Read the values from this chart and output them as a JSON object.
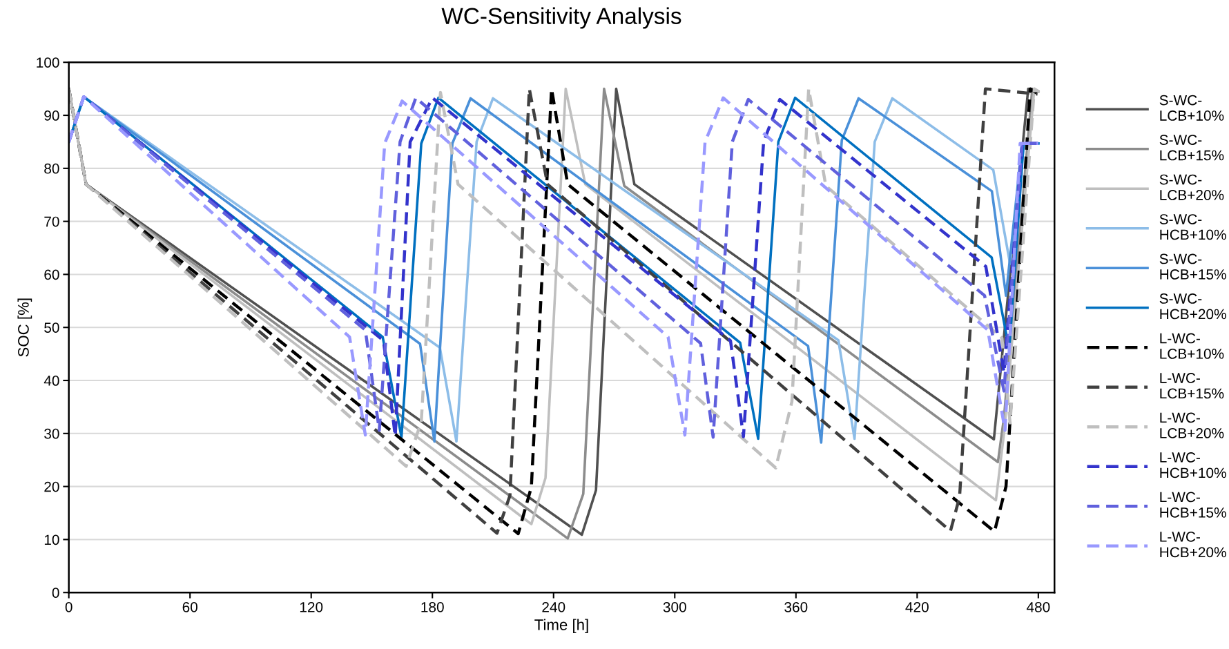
{
  "chart_data": {
    "type": "line",
    "title": "WC-Sensitivity Analysis",
    "xlabel": "Time [h]",
    "ylabel": "SOC [%]",
    "xlim": [
      0,
      488
    ],
    "ylim": [
      0,
      100
    ],
    "xticks": [
      0,
      60,
      120,
      180,
      240,
      300,
      360,
      420,
      480
    ],
    "yticks": [
      0,
      10,
      20,
      30,
      40,
      50,
      60,
      70,
      80,
      90,
      100
    ],
    "grid": "y",
    "legend": "right",
    "marker": "none",
    "series": [
      {
        "name": "S-WC-LCB+10%",
        "color": "#505050",
        "line_style": "solid",
        "x": [
          0,
          8.5,
          254,
          261,
          271,
          280,
          458,
          475,
          480
        ],
        "values": [
          95,
          77,
          10.9,
          19.3,
          95,
          77,
          28.9,
          95,
          94.5
        ]
      },
      {
        "name": "S-WC-LCB+15%",
        "color": "#8c8c8c",
        "line_style": "solid",
        "x": [
          0,
          8.5,
          247,
          254.7,
          265,
          275,
          460,
          463,
          477,
          480
        ],
        "values": [
          95,
          77,
          10.2,
          18.6,
          95,
          76.7,
          24.6,
          33,
          95,
          94.5
        ]
      },
      {
        "name": "S-WC-LCB+20%",
        "color": "#bfbfbf",
        "line_style": "solid",
        "x": [
          0,
          8.5,
          229,
          236,
          246,
          255.7,
          459,
          463,
          478,
          480
        ],
        "values": [
          95,
          77,
          12.9,
          21.6,
          95,
          77,
          17.4,
          30,
          95,
          94.5
        ]
      },
      {
        "name": "S-WC-HCB+10%",
        "color": "#8dbde8",
        "line_style": "solid",
        "x": [
          0,
          7.4,
          183.7,
          191.9,
          201.9,
          210,
          381,
          389,
          399,
          407.7,
          457.7,
          466,
          473,
          480
        ],
        "values": [
          85,
          93.5,
          46.2,
          28.5,
          85,
          93.2,
          47.6,
          29,
          85,
          93.2,
          79.7,
          62,
          84.7,
          84.7
        ]
      },
      {
        "name": "S-WC-HCB+15%",
        "color": "#4a90d9",
        "line_style": "solid",
        "x": [
          0,
          7.4,
          173.9,
          181,
          189.9,
          198.9,
          366,
          372.5,
          382.7,
          391,
          457,
          464,
          472,
          480
        ],
        "values": [
          85,
          93.5,
          46.9,
          28.5,
          84.7,
          93.2,
          46.5,
          28.3,
          85.3,
          93.2,
          75.7,
          56,
          84.7,
          84.7
        ]
      },
      {
        "name": "S-WC-HCB+20%",
        "color": "#0070c0",
        "line_style": "solid",
        "x": [
          0,
          7.4,
          155.4,
          164.7,
          174.5,
          183,
          332.4,
          341.3,
          351.3,
          359.6,
          456.9,
          465.6,
          472.7,
          480
        ],
        "values": [
          85,
          93.5,
          48.2,
          29.3,
          84.7,
          93.3,
          47.1,
          29,
          85,
          93.3,
          63.2,
          45.8,
          84.7,
          84.7
        ]
      },
      {
        "name": "L-WC-LCB+10%",
        "color": "#000000",
        "line_style": "dashed",
        "x": [
          0,
          8.5,
          222.5,
          229,
          239,
          247,
          458.3,
          464,
          476,
          480
        ],
        "values": [
          95,
          77,
          11.1,
          19.9,
          95,
          77,
          11.5,
          20,
          95,
          94
        ]
      },
      {
        "name": "L-WC-LCB+15%",
        "color": "#404040",
        "line_style": "dashed",
        "x": [
          0,
          8.5,
          212,
          218.4,
          228,
          237,
          436.5,
          441,
          453.8,
          479.6
        ],
        "values": [
          95,
          77,
          11.2,
          18.3,
          95,
          77,
          11.6,
          18,
          95,
          94
        ]
      },
      {
        "name": "L-WC-LCB+20%",
        "color": "#bfbfbf",
        "line_style": "dashed",
        "x": [
          0,
          8.5,
          167,
          174.5,
          184,
          192.7,
          350,
          358,
          366.3,
          374.8,
          462,
          466,
          478,
          480
        ],
        "values": [
          95,
          77,
          23.8,
          32.2,
          94.3,
          77,
          23.5,
          36,
          95,
          76.7,
          48,
          32,
          95,
          94.5
        ]
      },
      {
        "name": "L-WC-HCB+10%",
        "color": "#3333cc",
        "line_style": "dashed",
        "x": [
          0,
          7.4,
          155.8,
          161.6,
          169,
          180,
          327.6,
          334,
          344,
          352,
          454,
          463,
          472,
          480
        ],
        "values": [
          85,
          93.5,
          47.5,
          29.5,
          85,
          93.3,
          47.5,
          29.4,
          85,
          93,
          61.5,
          41.5,
          84.7,
          84.7
        ]
      },
      {
        "name": "L-WC-HCB+15%",
        "color": "#6060dd",
        "line_style": "dashed",
        "x": [
          0,
          7.4,
          146.8,
          153.7,
          164,
          171.8,
          312.8,
          319,
          328.5,
          336.4,
          453.4,
          463,
          472,
          480
        ],
        "values": [
          85,
          93.5,
          49.5,
          30.6,
          85,
          93.3,
          47,
          29.3,
          85,
          93,
          56,
          38,
          84.7,
          84.7
        ]
      },
      {
        "name": "L-WC-HCB+20%",
        "color": "#9999ff",
        "line_style": "dashed",
        "x": [
          0,
          7.4,
          139,
          146.8,
          156.4,
          165,
          296.7,
          305,
          315,
          324,
          455,
          463.5,
          471,
          480
        ],
        "values": [
          85,
          93.5,
          48.2,
          29.7,
          84.7,
          92.7,
          48.2,
          29.7,
          85,
          93.3,
          49.5,
          30.6,
          84.7,
          84.7
        ]
      }
    ]
  }
}
